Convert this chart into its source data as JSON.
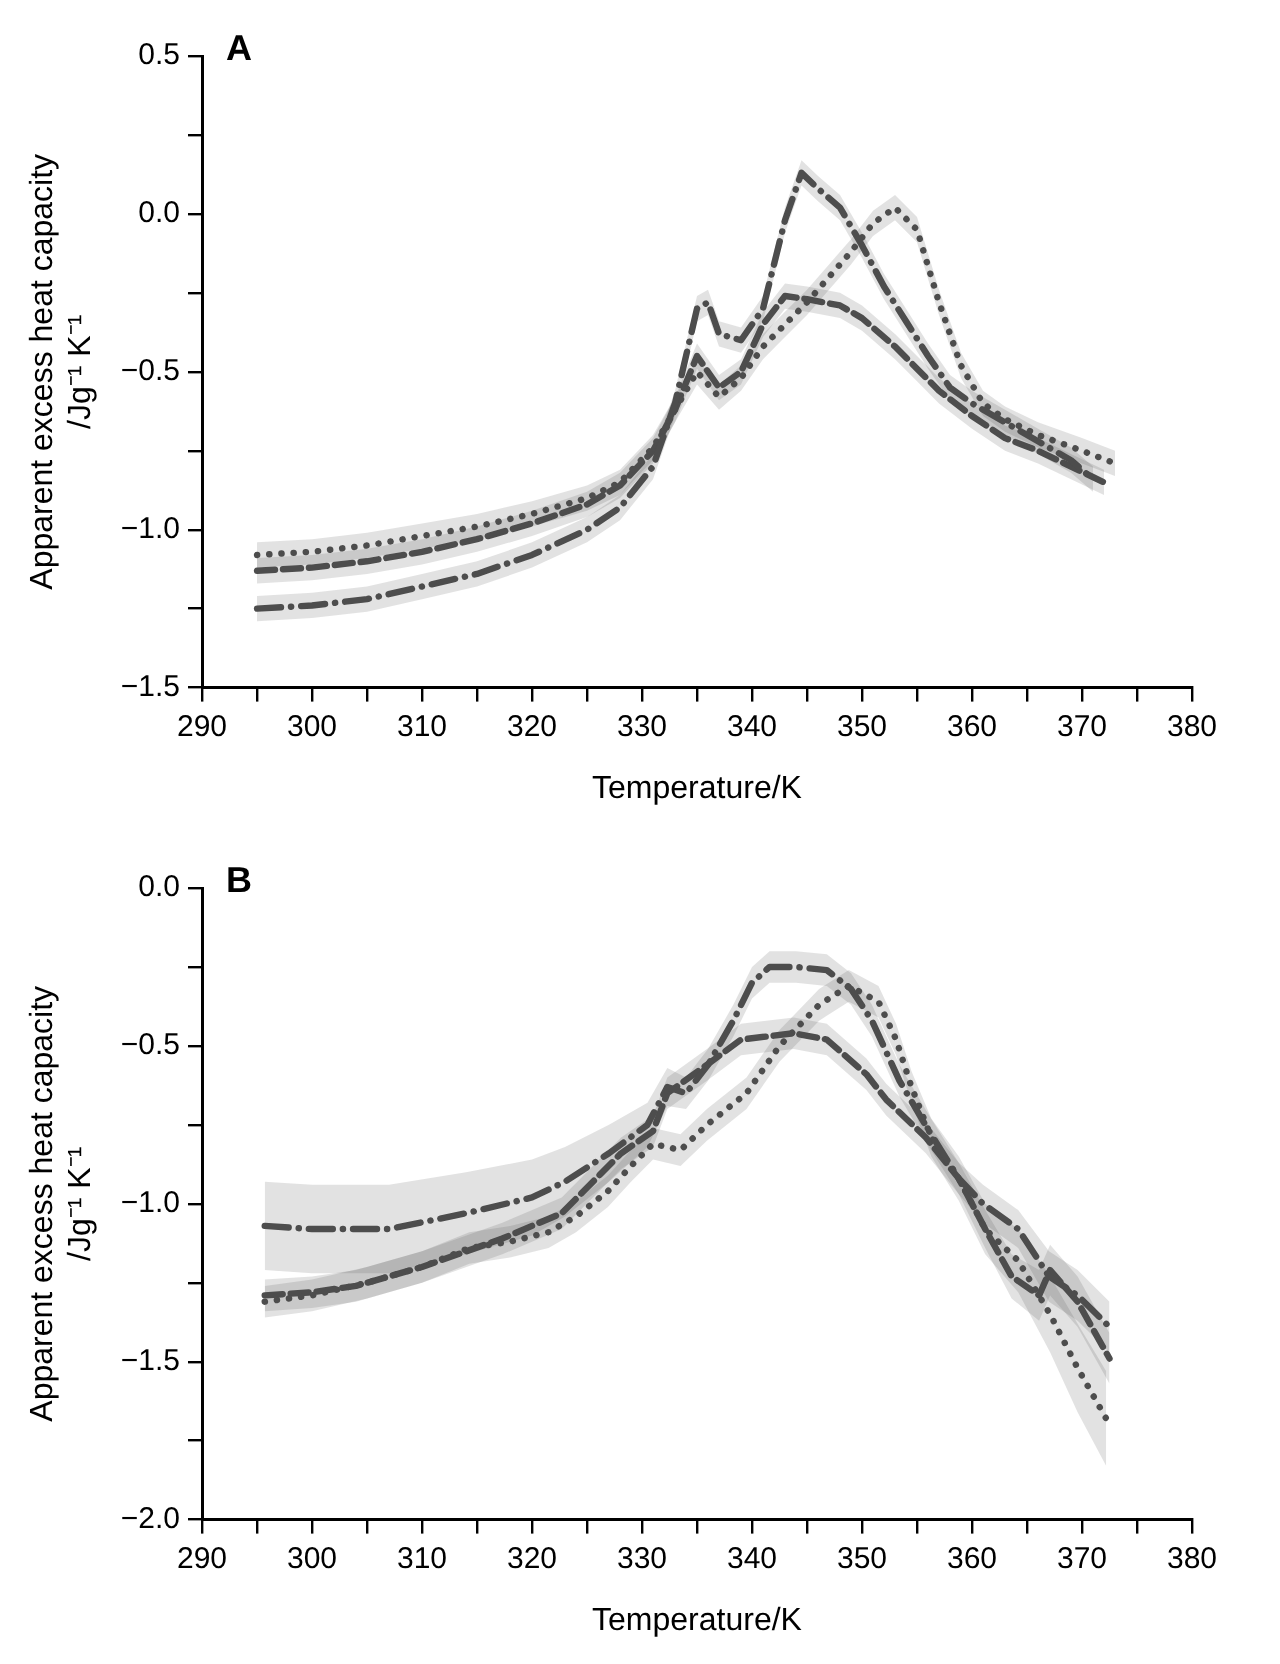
{
  "chart_data": [
    {
      "type": "line",
      "title": "A",
      "xlabel": "Temperature/K",
      "ylabel": "Apparent excess heat capacity\n/Jg⁻¹ K⁻¹",
      "xlim": [
        290,
        380
      ],
      "ylim": [
        -1.5,
        0.5
      ],
      "xticks": [
        290,
        {
          "value": 295,
          "label": null
        },
        300,
        {
          "value": 305,
          "label": null
        },
        310,
        {
          "value": 315,
          "label": null
        },
        320,
        {
          "value": 325,
          "label": null
        },
        330,
        {
          "value": 335,
          "label": null
        },
        340,
        {
          "value": 345,
          "label": null
        },
        350,
        {
          "value": 355,
          "label": null
        },
        360,
        {
          "value": 365,
          "label": null
        },
        370,
        {
          "value": 375,
          "label": null
        },
        380
      ],
      "yticks": [
        {
          "value": -1.5,
          "label": "−1.5"
        },
        {
          "value": -1.25,
          "label": null
        },
        {
          "value": -1,
          "label": "−1.0"
        },
        {
          "value": -0.75,
          "label": null
        },
        {
          "value": -0.5,
          "label": "−0.5"
        },
        {
          "value": -0.25,
          "label": null
        },
        {
          "value": 0,
          "label": "0.0"
        },
        {
          "value": 0.25,
          "label": null
        },
        0.5
      ],
      "grid": false,
      "legend": false,
      "marker": "none",
      "series": [
        {
          "color": "#4d4d4d",
          "line_style": "dashdot",
          "x": [
            295,
            300,
            305,
            310,
            315,
            320,
            325,
            328,
            331,
            333,
            335,
            336,
            337,
            339,
            341,
            343,
            344.5,
            346,
            348,
            350,
            352,
            354,
            356,
            358,
            360,
            363,
            366,
            369,
            371
          ],
          "values": [
            -1.25,
            -1.24,
            -1.22,
            -1.18,
            -1.14,
            -1.08,
            -1.0,
            -0.93,
            -0.8,
            -0.6,
            -0.3,
            -0.28,
            -0.38,
            -0.4,
            -0.3,
            -0.02,
            0.13,
            0.08,
            0.02,
            -0.1,
            -0.23,
            -0.34,
            -0.45,
            -0.55,
            -0.6,
            -0.66,
            -0.72,
            -0.78,
            -0.84
          ],
          "lower": [
            -1.29,
            -1.28,
            -1.26,
            -1.22,
            -1.18,
            -1.12,
            -1.04,
            -0.97,
            -0.84,
            -0.64,
            -0.34,
            -0.32,
            -0.42,
            -0.44,
            -0.34,
            -0.06,
            0.09,
            0.04,
            -0.02,
            -0.14,
            -0.27,
            -0.38,
            -0.49,
            -0.59,
            -0.64,
            -0.7,
            -0.76,
            -0.82,
            -0.88
          ],
          "upper": [
            -1.21,
            -1.2,
            -1.18,
            -1.14,
            -1.1,
            -1.04,
            -0.96,
            -0.89,
            -0.76,
            -0.56,
            -0.26,
            -0.24,
            -0.34,
            -0.36,
            -0.26,
            0.02,
            0.17,
            0.12,
            0.06,
            -0.06,
            -0.19,
            -0.3,
            -0.41,
            -0.51,
            -0.56,
            -0.62,
            -0.68,
            -0.74,
            -0.8
          ]
        },
        {
          "color": "#4d4d4d",
          "line_style": "dotted",
          "x": [
            295,
            300,
            305,
            310,
            315,
            320,
            325,
            328,
            331,
            333,
            335,
            337,
            339,
            341,
            343,
            345,
            347,
            349,
            351,
            353,
            355,
            357,
            359,
            361,
            363,
            366,
            370,
            373
          ],
          "values": [
            -1.08,
            -1.07,
            -1.05,
            -1.02,
            -0.99,
            -0.95,
            -0.9,
            -0.85,
            -0.74,
            -0.62,
            -0.5,
            -0.58,
            -0.52,
            -0.42,
            -0.35,
            -0.28,
            -0.2,
            -0.12,
            -0.03,
            0.02,
            -0.05,
            -0.28,
            -0.48,
            -0.6,
            -0.65,
            -0.7,
            -0.75,
            -0.79
          ],
          "lower": [
            -1.12,
            -1.11,
            -1.09,
            -1.06,
            -1.03,
            -0.99,
            -0.94,
            -0.89,
            -0.78,
            -0.66,
            -0.54,
            -0.62,
            -0.56,
            -0.46,
            -0.39,
            -0.32,
            -0.24,
            -0.16,
            -0.07,
            -0.02,
            -0.09,
            -0.32,
            -0.52,
            -0.64,
            -0.69,
            -0.74,
            -0.79,
            -0.83
          ],
          "upper": [
            -1.04,
            -1.03,
            -1.01,
            -0.98,
            -0.95,
            -0.91,
            -0.86,
            -0.81,
            -0.7,
            -0.58,
            -0.46,
            -0.54,
            -0.48,
            -0.38,
            -0.31,
            -0.24,
            -0.16,
            -0.08,
            0.01,
            0.06,
            -0.01,
            -0.24,
            -0.44,
            -0.56,
            -0.61,
            -0.66,
            -0.71,
            -0.75
          ]
        },
        {
          "color": "#4d4d4d",
          "line_style": "dashed",
          "x": [
            295,
            300,
            305,
            310,
            315,
            320,
            325,
            328,
            331,
            333,
            335,
            337,
            339,
            341,
            343,
            345,
            348,
            350,
            353,
            355,
            357,
            360,
            363,
            366,
            369,
            372
          ],
          "values": [
            -1.13,
            -1.12,
            -1.1,
            -1.07,
            -1.03,
            -0.98,
            -0.92,
            -0.86,
            -0.75,
            -0.62,
            -0.45,
            -0.55,
            -0.5,
            -0.35,
            -0.26,
            -0.27,
            -0.29,
            -0.33,
            -0.42,
            -0.49,
            -0.56,
            -0.64,
            -0.71,
            -0.75,
            -0.8,
            -0.85
          ],
          "lower": [
            -1.17,
            -1.16,
            -1.14,
            -1.11,
            -1.07,
            -1.02,
            -0.96,
            -0.9,
            -0.79,
            -0.66,
            -0.49,
            -0.59,
            -0.54,
            -0.39,
            -0.3,
            -0.31,
            -0.33,
            -0.37,
            -0.46,
            -0.53,
            -0.6,
            -0.68,
            -0.75,
            -0.79,
            -0.84,
            -0.89
          ],
          "upper": [
            -1.09,
            -1.08,
            -1.06,
            -1.03,
            -0.99,
            -0.94,
            -0.88,
            -0.82,
            -0.71,
            -0.58,
            -0.41,
            -0.51,
            -0.46,
            -0.31,
            -0.22,
            -0.23,
            -0.25,
            -0.29,
            -0.38,
            -0.45,
            -0.52,
            -0.6,
            -0.67,
            -0.71,
            -0.76,
            -0.81
          ]
        }
      ]
    },
    {
      "type": "line",
      "title": "B",
      "xlabel": "Temperature/K",
      "ylabel": "Apparent excess heat capacity\n/Jg⁻¹ K⁻¹",
      "xlim": [
        290,
        380
      ],
      "ylim": [
        -2,
        0
      ],
      "xticks": [
        290,
        {
          "value": 295,
          "label": null
        },
        300,
        {
          "value": 305,
          "label": null
        },
        310,
        {
          "value": 315,
          "label": null
        },
        320,
        {
          "value": 325,
          "label": null
        },
        330,
        {
          "value": 335,
          "label": null
        },
        340,
        {
          "value": 345,
          "label": null
        },
        350,
        {
          "value": 355,
          "label": null
        },
        360,
        {
          "value": 365,
          "label": null
        },
        370,
        {
          "value": 375,
          "label": null
        },
        380
      ],
      "yticks": [
        {
          "value": -2,
          "label": "−2.0"
        },
        {
          "value": -1.75,
          "label": null
        },
        {
          "value": -1.5,
          "label": "−1.5"
        },
        {
          "value": -1.25,
          "label": null
        },
        {
          "value": -1,
          "label": "−1.0"
        },
        {
          "value": -0.75,
          "label": null
        },
        {
          "value": -0.5,
          "label": "−0.5"
        },
        {
          "value": -0.25,
          "label": null
        },
        {
          "value": 0,
          "label": "0.0"
        }
      ],
      "grid": false,
      "legend": false,
      "marker": "none",
      "series": [
        {
          "color": "#4d4d4d",
          "line_style": "dashdot",
          "x": [
            295.7,
            300,
            307,
            314,
            320,
            323,
            327,
            330.5,
            332.3,
            334,
            336,
            338.3,
            340,
            341.6,
            344,
            346.8,
            349,
            350.9,
            353.4,
            356.1,
            358.8,
            361,
            364.2,
            367,
            369.6,
            372.5
          ],
          "values": [
            -1.07,
            -1.08,
            -1.08,
            -1.03,
            -0.98,
            -0.93,
            -0.84,
            -0.75,
            -0.63,
            -0.65,
            -0.56,
            -0.42,
            -0.3,
            -0.25,
            -0.25,
            -0.26,
            -0.32,
            -0.42,
            -0.61,
            -0.77,
            -0.92,
            -1.0,
            -1.08,
            -1.23,
            -1.29,
            -1.39
          ],
          "lower": [
            -1.21,
            -1.22,
            -1.22,
            -1.16,
            -1.1,
            -1.04,
            -0.93,
            -0.82,
            -0.69,
            -0.7,
            -0.61,
            -0.47,
            -0.35,
            -0.3,
            -0.3,
            -0.31,
            -0.37,
            -0.47,
            -0.66,
            -0.82,
            -0.97,
            -1.06,
            -1.14,
            -1.31,
            -1.37,
            -1.47
          ],
          "upper": [
            -0.93,
            -0.94,
            -0.94,
            -0.9,
            -0.86,
            -0.82,
            -0.75,
            -0.68,
            -0.57,
            -0.6,
            -0.51,
            -0.37,
            -0.25,
            -0.2,
            -0.2,
            -0.21,
            -0.27,
            -0.37,
            -0.56,
            -0.72,
            -0.87,
            -0.94,
            -1.02,
            -1.15,
            -1.21,
            -1.31
          ]
        },
        {
          "color": "#4d4d4d",
          "line_style": "dotted",
          "x": [
            295.7,
            300,
            305,
            310,
            314.3,
            318,
            321.5,
            324,
            326.9,
            329,
            331,
            333.5,
            335.9,
            339.5,
            342.5,
            346.1,
            348.8,
            351.5,
            353.1,
            354.5,
            356.3,
            358.8,
            361.2,
            364.2,
            367.1,
            369.6,
            372.2
          ],
          "values": [
            -1.31,
            -1.29,
            -1.25,
            -1.2,
            -1.14,
            -1.12,
            -1.09,
            -1.04,
            -0.96,
            -0.88,
            -0.81,
            -0.83,
            -0.75,
            -0.65,
            -0.5,
            -0.37,
            -0.31,
            -0.36,
            -0.48,
            -0.63,
            -0.79,
            -0.92,
            -1.08,
            -1.18,
            -1.35,
            -1.52,
            -1.68
          ],
          "lower": [
            -1.36,
            -1.34,
            -1.3,
            -1.25,
            -1.19,
            -1.17,
            -1.14,
            -1.09,
            -1.01,
            -0.93,
            -0.86,
            -0.88,
            -0.8,
            -0.7,
            -0.55,
            -0.42,
            -0.36,
            -0.41,
            -0.53,
            -0.68,
            -0.85,
            -0.99,
            -1.16,
            -1.28,
            -1.47,
            -1.66,
            -1.83
          ],
          "upper": [
            -1.26,
            -1.24,
            -1.2,
            -1.15,
            -1.09,
            -1.07,
            -1.04,
            -0.99,
            -0.91,
            -0.83,
            -0.76,
            -0.78,
            -0.7,
            -0.6,
            -0.45,
            -0.32,
            -0.26,
            -0.31,
            -0.43,
            -0.58,
            -0.73,
            -0.85,
            -1.0,
            -1.08,
            -1.23,
            -1.38,
            -1.53
          ]
        },
        {
          "color": "#4d4d4d",
          "line_style": "dashed",
          "x": [
            295.7,
            300,
            304,
            310,
            317.3,
            322.7,
            328.1,
            331,
            332.3,
            335.9,
            339,
            343.8,
            346.8,
            350.4,
            352.2,
            355.8,
            358.8,
            361.2,
            363.6,
            366.1,
            367.1,
            369.6,
            372.5
          ],
          "values": [
            -1.29,
            -1.28,
            -1.26,
            -1.2,
            -1.11,
            -1.03,
            -0.84,
            -0.77,
            -0.65,
            -0.56,
            -0.48,
            -0.46,
            -0.48,
            -0.59,
            -0.67,
            -0.79,
            -0.92,
            -1.08,
            -1.23,
            -1.29,
            -1.21,
            -1.31,
            -1.49
          ],
          "lower": [
            -1.34,
            -1.33,
            -1.31,
            -1.25,
            -1.16,
            -1.08,
            -0.89,
            -0.82,
            -0.7,
            -0.61,
            -0.53,
            -0.51,
            -0.53,
            -0.64,
            -0.72,
            -0.84,
            -0.97,
            -1.14,
            -1.3,
            -1.37,
            -1.29,
            -1.39,
            -1.57
          ],
          "upper": [
            -1.24,
            -1.23,
            -1.21,
            -1.15,
            -1.06,
            -0.98,
            -0.79,
            -0.72,
            -0.6,
            -0.51,
            -0.43,
            -0.41,
            -0.43,
            -0.54,
            -0.62,
            -0.74,
            -0.87,
            -1.02,
            -1.16,
            -1.21,
            -1.13,
            -1.23,
            -1.41
          ]
        }
      ]
    }
  ]
}
